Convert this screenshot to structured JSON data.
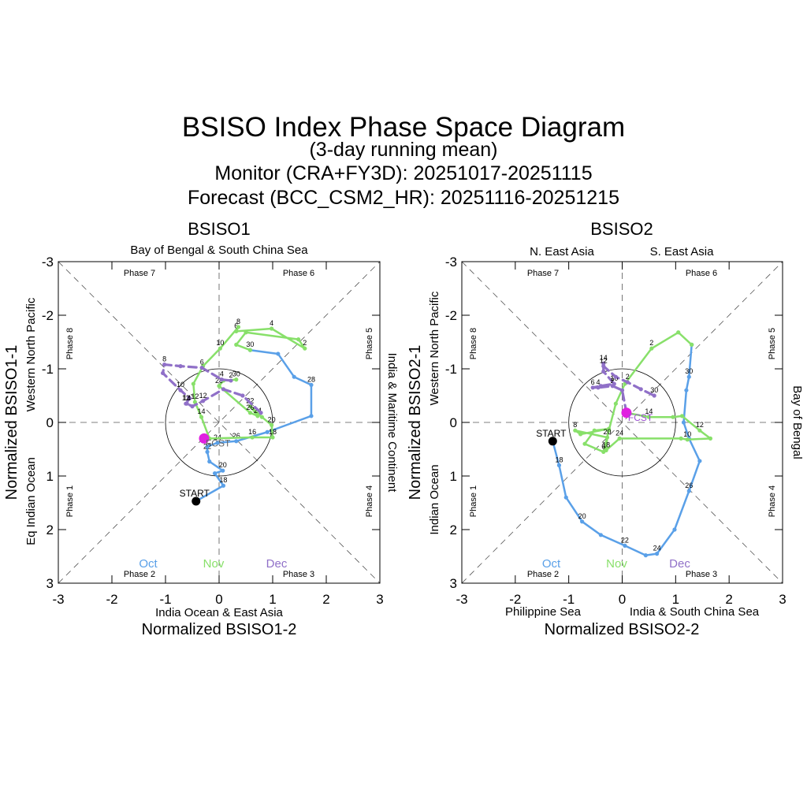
{
  "title": {
    "main": "BSISO Index Phase Space Diagram",
    "sub": "(3-day running mean)",
    "monitor": "Monitor (CRA+FY3D): 20251017-20251115",
    "forecast": "Forecast (BCC_CSM2_HR): 20251116-20251215"
  },
  "colors": {
    "oct": "#5aa0e8",
    "nov": "#88e06a",
    "dec": "#9070c8",
    "start": "#000000",
    "fcst": "#e020e0"
  },
  "chart_data": [
    {
      "type": "line",
      "panel_title": "BSISO1",
      "xlabel": "Normalized BSISO1-2",
      "ylabel": "Normalized BSISO1-1",
      "xlim": [
        -3,
        3
      ],
      "ylim": [
        -3,
        3
      ],
      "y_axis": "inverted",
      "x_ticks": [
        "-3",
        "-2",
        "-1",
        "0",
        "1",
        "2",
        "3"
      ],
      "y_ticks": [
        "-3",
        "-2",
        "-1",
        "0",
        "1",
        "2",
        "3"
      ],
      "regions": {
        "top": "Bay of Bengal & South China Sea",
        "bottom": "India Ocean & East Asia",
        "left": "Eq Indian Ocean",
        "left_outer": "Western North Pacific",
        "right": "India & Maritime Continent"
      },
      "phases": [
        "Phase 1",
        "Phase 2",
        "Phase 3",
        "Phase 4",
        "Phase 5",
        "Phase 6",
        "Phase 7",
        "Phase 8"
      ],
      "month_legend": [
        "Oct",
        "Nov",
        "Dec"
      ],
      "start_label": "START",
      "start_point": [
        -0.43,
        1.47
      ],
      "fcst_label": "FCST",
      "fcst_point": [
        -0.28,
        0.3
      ],
      "series": [
        {
          "name": "Oct",
          "style": "solid",
          "points": [
            [
              -0.43,
              1.47,
              ""
            ],
            [
              0.08,
              1.18,
              "18"
            ],
            [
              -0.08,
              0.95,
              ""
            ],
            [
              0.07,
              0.9,
              "20"
            ],
            [
              -0.18,
              0.73,
              ""
            ],
            [
              -0.22,
              0.55,
              "22"
            ],
            [
              -0.22,
              0.45,
              ""
            ],
            [
              -0.03,
              0.38,
              "24"
            ],
            [
              0.32,
              0.35,
              "26"
            ],
            [
              0.9,
              0.18,
              ""
            ],
            [
              1.72,
              -0.12,
              ""
            ],
            [
              1.72,
              -0.7,
              "28"
            ],
            [
              1.4,
              -0.85,
              ""
            ],
            [
              1.1,
              -1.28,
              ""
            ],
            [
              0.58,
              -1.35,
              "30"
            ]
          ]
        },
        {
          "name": "Nov",
          "style": "solid",
          "points": [
            [
              0.58,
              -1.35,
              ""
            ],
            [
              0.32,
              -1.45,
              ""
            ],
            [
              0.5,
              -1.68,
              ""
            ],
            [
              1.48,
              -1.55,
              ""
            ],
            [
              1.6,
              -1.38,
              "2"
            ],
            [
              0.98,
              -1.75,
              "4"
            ],
            [
              0.32,
              -1.7,
              "6"
            ],
            [
              0.36,
              -1.78,
              "8"
            ],
            [
              0.02,
              -1.38,
              "10"
            ],
            [
              -0.3,
              -1.05,
              ""
            ],
            [
              -0.48,
              -0.72,
              ""
            ],
            [
              -0.45,
              -0.38,
              "12"
            ],
            [
              -0.33,
              -0.1,
              "14"
            ],
            [
              -0.18,
              0.3,
              ""
            ],
            [
              0.62,
              0.28,
              "16"
            ],
            [
              1.0,
              0.28,
              "18"
            ],
            [
              0.98,
              0.05,
              "20"
            ],
            [
              0.8,
              -0.1,
              ""
            ],
            [
              0.58,
              -0.3,
              "22"
            ],
            [
              0.72,
              -0.12,
              "24"
            ],
            [
              0.58,
              -0.18,
              "26"
            ],
            [
              0.0,
              -0.68,
              "28"
            ],
            [
              0.08,
              -0.78,
              ""
            ],
            [
              0.32,
              -0.8,
              "30"
            ]
          ]
        },
        {
          "name": "Dec",
          "style": "dashed",
          "points": [
            [
              0.22,
              -0.78,
              "2"
            ],
            [
              0.05,
              -0.8,
              "4"
            ],
            [
              -0.32,
              -1.02,
              "6"
            ],
            [
              -0.72,
              -1.05,
              ""
            ],
            [
              -1.02,
              -1.08,
              "8"
            ],
            [
              -1.05,
              -0.92,
              ""
            ],
            [
              -0.72,
              -0.6,
              "10"
            ],
            [
              -0.55,
              -0.45,
              ""
            ],
            [
              -0.62,
              -0.35,
              "12"
            ],
            [
              -0.6,
              -0.35,
              "14"
            ],
            [
              -0.5,
              -0.3,
              ""
            ],
            [
              -0.3,
              -0.4,
              "12"
            ],
            [
              0.08,
              -0.62,
              ""
            ],
            [
              0.44,
              -0.5,
              ""
            ],
            [
              0.78,
              -0.18,
              ""
            ]
          ]
        }
      ]
    },
    {
      "type": "line",
      "panel_title": "BSISO2",
      "xlabel": "Normalized BSISO2-2",
      "ylabel": "Normalized BSISO2-1",
      "xlim": [
        -3,
        3
      ],
      "ylim": [
        -3,
        3
      ],
      "y_axis": "inverted",
      "x_ticks": [
        "-3",
        "-2",
        "-1",
        "0",
        "1",
        "2",
        "3"
      ],
      "y_ticks": [
        "-3",
        "-2",
        "-1",
        "0",
        "1",
        "2",
        "3"
      ],
      "regions": {
        "top_left": "N. East Asia",
        "top_right": "S. East Asia",
        "bottom_left": "Philippine Sea",
        "bottom_right": "India & South China Sea",
        "left": "Indian Ocean",
        "left_outer": "Western North Pacific",
        "right": "Bay of Bengal"
      },
      "phases": [
        "Phase 1",
        "Phase 2",
        "Phase 3",
        "Phase 4",
        "Phase 5",
        "Phase 6",
        "Phase 7",
        "Phase 8"
      ],
      "month_legend": [
        "Oct",
        "Nov",
        "Dec"
      ],
      "start_label": "START",
      "start_point": [
        -1.3,
        0.35
      ],
      "fcst_label": "FCST",
      "fcst_point": [
        0.08,
        -0.18
      ],
      "series": [
        {
          "name": "Oct",
          "style": "solid",
          "points": [
            [
              -1.3,
              0.35,
              ""
            ],
            [
              -1.18,
              0.8,
              "18"
            ],
            [
              -1.05,
              1.4,
              ""
            ],
            [
              -0.75,
              1.85,
              "20"
            ],
            [
              -0.4,
              2.1,
              ""
            ],
            [
              0.05,
              2.3,
              "22"
            ],
            [
              0.44,
              2.48,
              ""
            ],
            [
              0.65,
              2.45,
              "24"
            ],
            [
              0.98,
              2.0,
              ""
            ],
            [
              1.25,
              1.28,
              "26"
            ],
            [
              1.45,
              0.72,
              ""
            ],
            [
              1.25,
              0.3,
              ""
            ],
            [
              1.15,
              0.0,
              ""
            ],
            [
              1.2,
              -0.6,
              ""
            ],
            [
              1.25,
              -0.85,
              "30"
            ],
            [
              1.3,
              -1.45,
              ""
            ]
          ]
        },
        {
          "name": "Nov",
          "style": "solid",
          "points": [
            [
              1.3,
              -1.45,
              ""
            ],
            [
              1.05,
              -1.68,
              ""
            ],
            [
              0.55,
              -1.38,
              "2"
            ],
            [
              0.05,
              -0.72,
              ""
            ],
            [
              -0.12,
              -0.35,
              ""
            ],
            [
              -0.25,
              0.15,
              ""
            ],
            [
              -0.35,
              0.55,
              "6"
            ],
            [
              -0.7,
              0.4,
              ""
            ],
            [
              -0.52,
              0.15,
              ""
            ],
            [
              -0.25,
              0.12,
              ""
            ],
            [
              -0.78,
              0.22,
              ""
            ],
            [
              -0.88,
              0.15,
              "8"
            ],
            [
              -0.28,
              0.28,
              "20"
            ],
            [
              -0.3,
              0.52,
              "18"
            ],
            [
              -0.05,
              0.3,
              "24"
            ],
            [
              1.1,
              0.3,
              ""
            ],
            [
              1.22,
              0.32,
              "10"
            ],
            [
              1.65,
              0.3,
              ""
            ],
            [
              1.45,
              0.15,
              "12"
            ],
            [
              1.12,
              -0.12,
              ""
            ],
            [
              0.95,
              -0.1,
              ""
            ],
            [
              0.5,
              -0.1,
              "14"
            ],
            [
              0.08,
              -0.18,
              ""
            ]
          ]
        },
        {
          "name": "Dec",
          "style": "dashed",
          "points": [
            [
              0.08,
              -0.18,
              ""
            ],
            [
              0.0,
              -0.6,
              ""
            ],
            [
              -0.18,
              -0.68,
              "2"
            ],
            [
              -0.45,
              -0.65,
              "4"
            ],
            [
              -0.55,
              -0.65,
              "6"
            ],
            [
              -0.4,
              -0.68,
              ""
            ],
            [
              -0.15,
              -0.72,
              "10"
            ],
            [
              -0.35,
              -0.95,
              ""
            ],
            [
              -0.35,
              -1.1,
              "14"
            ],
            [
              -0.35,
              -1.05,
              "12"
            ],
            [
              -0.12,
              -0.85,
              ""
            ],
            [
              0.1,
              -0.75,
              "2"
            ],
            [
              0.35,
              -0.62,
              ""
            ],
            [
              0.6,
              -0.5,
              "30"
            ]
          ]
        }
      ]
    }
  ]
}
